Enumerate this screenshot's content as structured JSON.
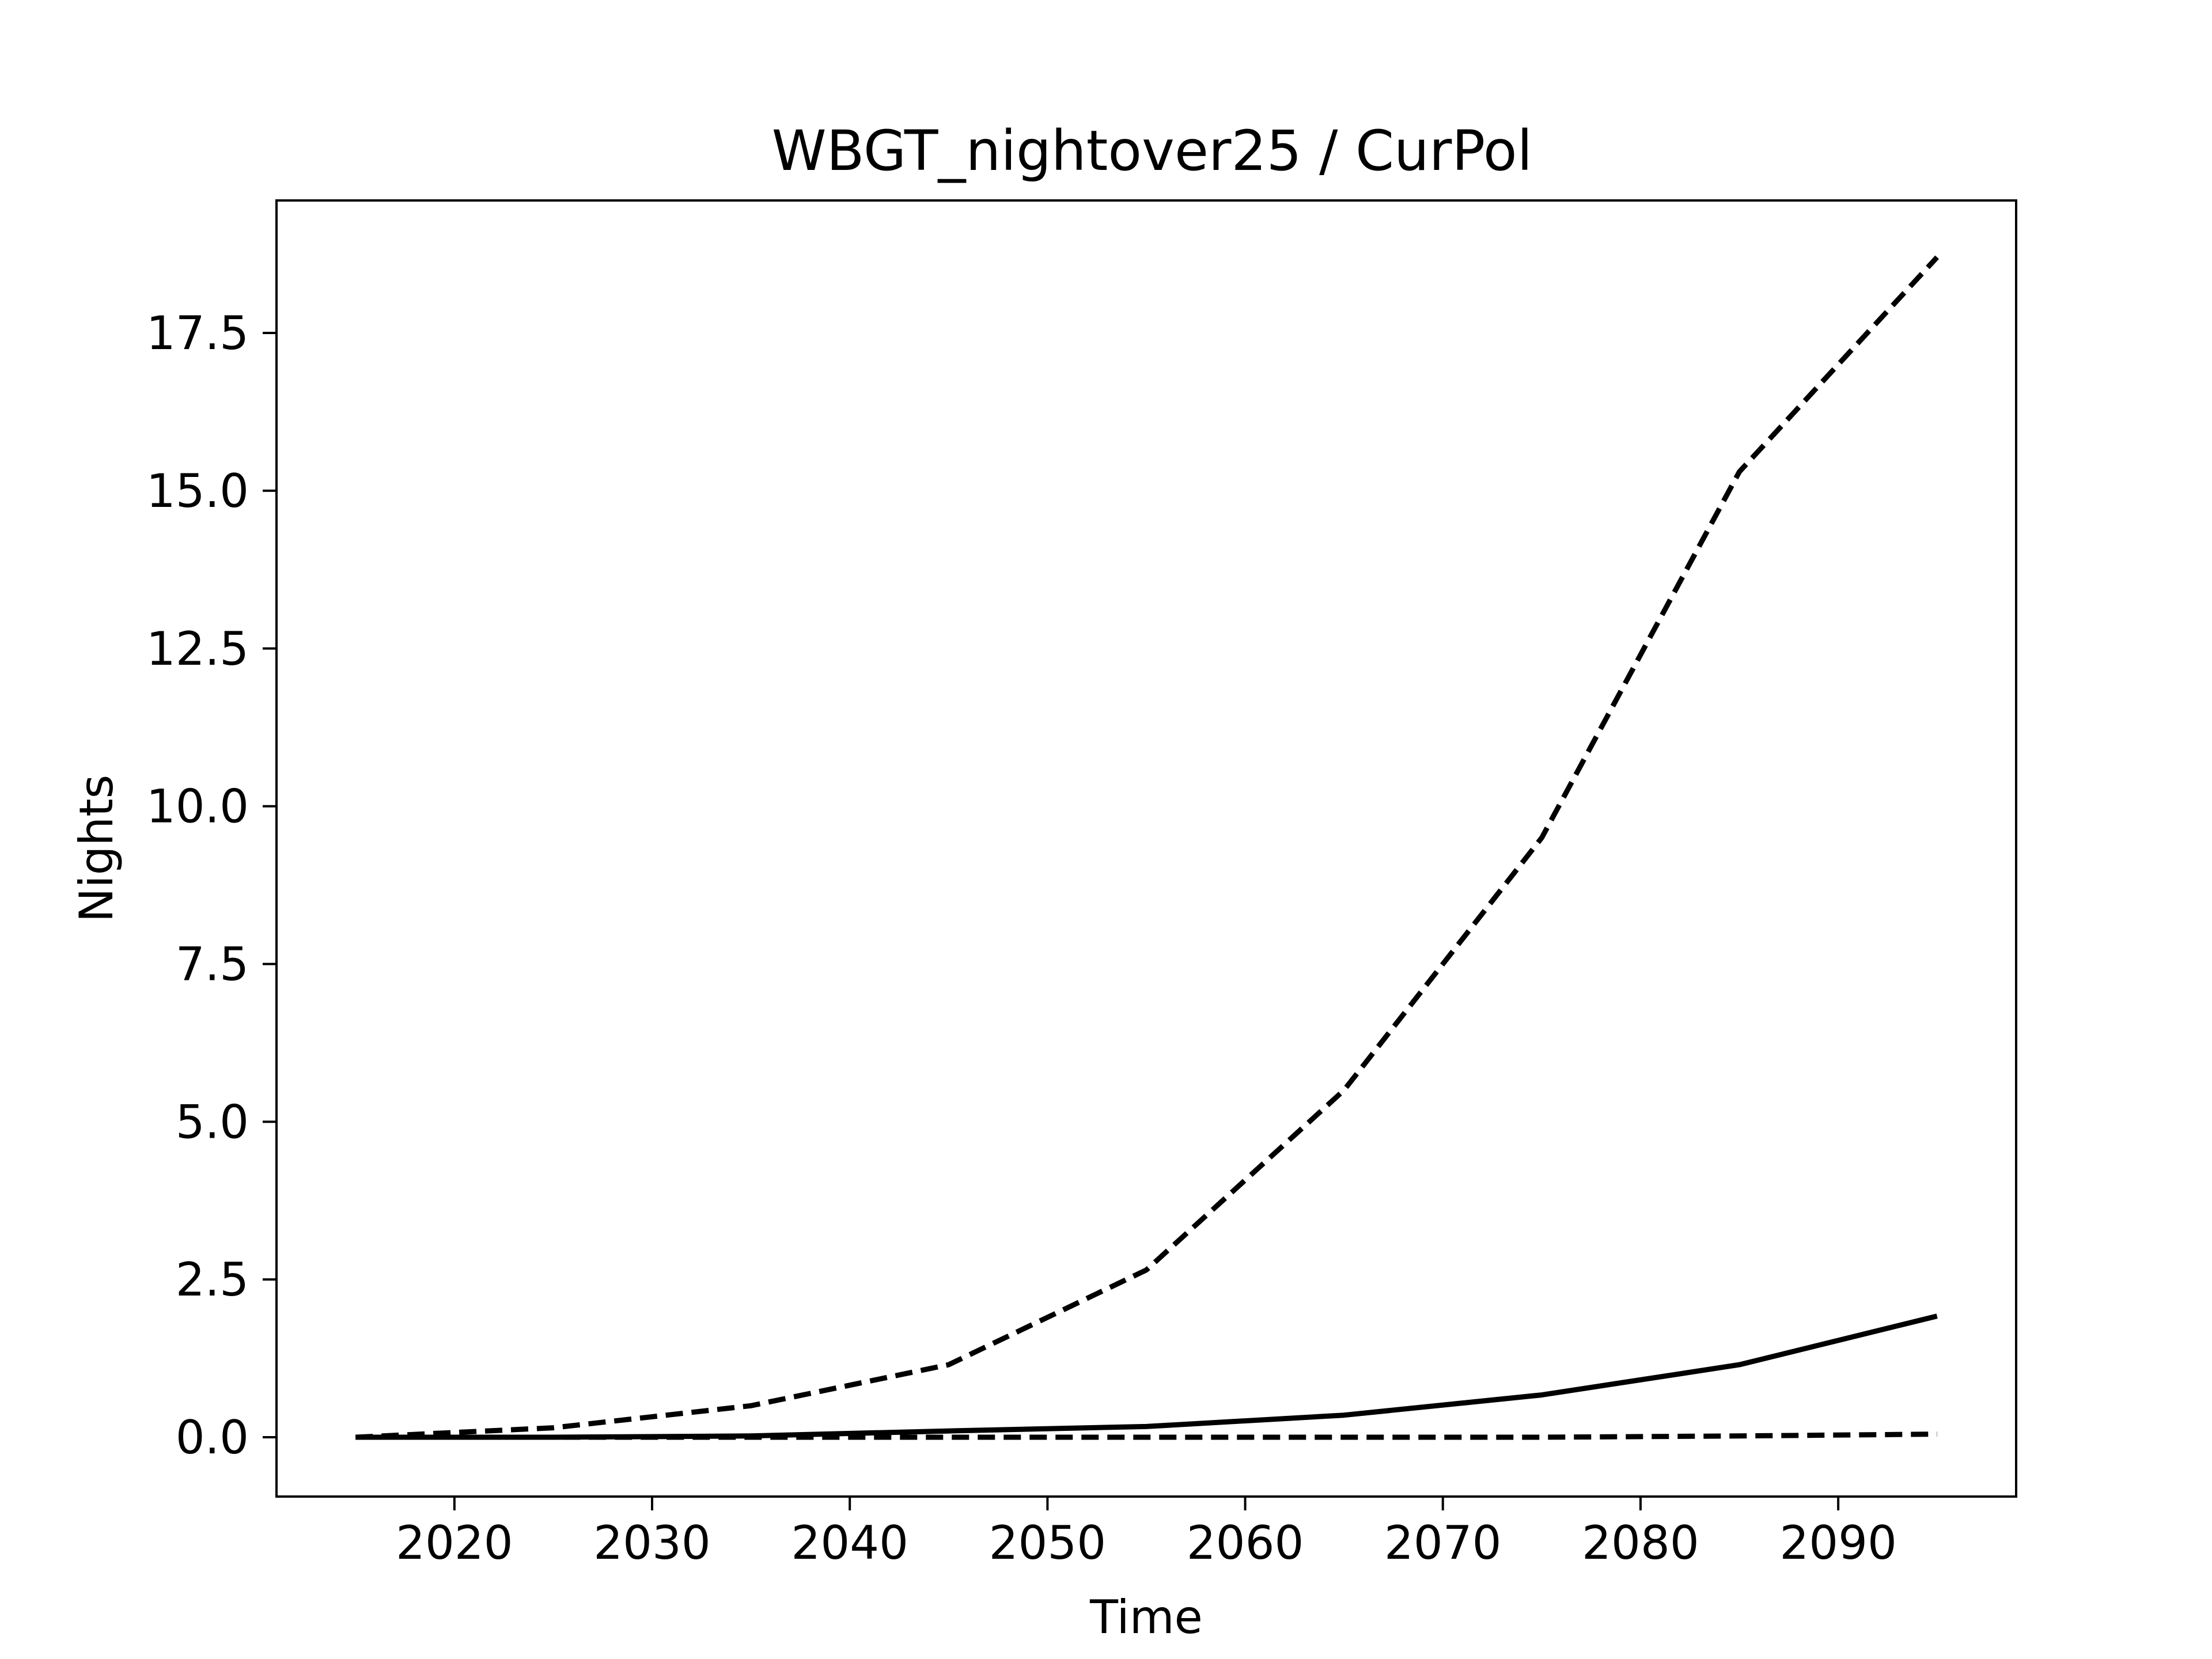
{
  "chart_data": {
    "type": "line",
    "title": "WBGT_nightover25 / CurPol",
    "xlabel": "Time",
    "ylabel": "Nights",
    "xlim": [
      2011,
      2099
    ],
    "ylim": [
      -0.94,
      19.6
    ],
    "xticks": [
      2020,
      2030,
      2040,
      2050,
      2060,
      2070,
      2080,
      2090
    ],
    "xtick_labels": [
      "2020",
      "2030",
      "2040",
      "2050",
      "2060",
      "2070",
      "2080",
      "2090"
    ],
    "yticks": [
      0,
      2.5,
      5,
      7.5,
      10,
      12.5,
      15,
      17.5
    ],
    "ytick_labels": [
      "0.0",
      "2.5",
      "5.0",
      "7.5",
      "10.0",
      "12.5",
      "15.0",
      "17.5"
    ],
    "grid": false,
    "legend": "none",
    "x": [
      2015,
      2025,
      2035,
      2045,
      2055,
      2065,
      2075,
      2085,
      2095
    ],
    "series": [
      {
        "style": "dashed",
        "color": "#000000",
        "values": [
          0.0,
          0.15,
          0.5,
          1.15,
          2.65,
          5.5,
          9.5,
          15.3,
          18.7
        ]
      },
      {
        "style": "solid",
        "color": "#000000",
        "values": [
          0.0,
          0.0,
          0.02,
          0.1,
          0.17,
          0.35,
          0.67,
          1.15,
          1.92
        ]
      },
      {
        "style": "dashed",
        "color": "#000000",
        "values": [
          0.0,
          0.0,
          0.0,
          0.0,
          0.0,
          0.0,
          0.0,
          0.02,
          0.05
        ]
      }
    ]
  }
}
